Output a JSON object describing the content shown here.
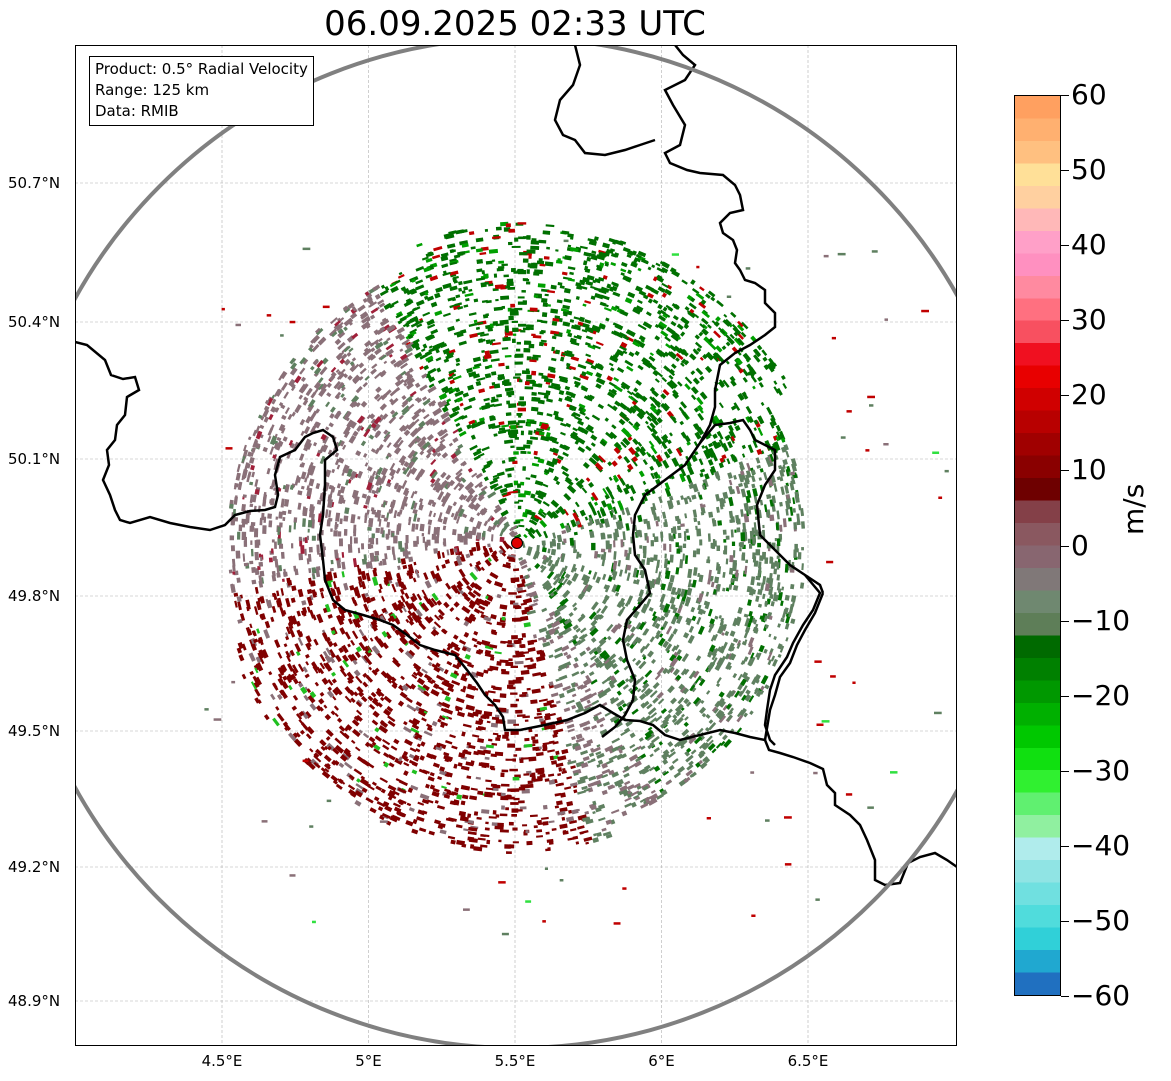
{
  "title": "06.09.2025 02:33 UTC",
  "info_box": {
    "product": "Product: 0.5° Radial Velocity",
    "range": "Range: 125 km",
    "data": "Data: RMIB"
  },
  "map": {
    "lon_range": [
      4.0,
      7.0
    ],
    "lat_range": [
      48.8,
      51.0
    ],
    "radar_site": {
      "lon": 5.505,
      "lat": 49.914
    },
    "range_ring_km": 125,
    "x_ticks": [
      "4.5°E",
      "5°E",
      "5.5°E",
      "6°E",
      "6.5°E"
    ],
    "x_tick_values": [
      4.5,
      5.0,
      5.5,
      6.0,
      6.5
    ],
    "y_ticks": [
      "50.7°N",
      "50.4°N",
      "50.1°N",
      "49.8°N",
      "49.5°N",
      "49.2°N",
      "48.9°N"
    ],
    "y_tick_values": [
      50.7,
      50.4,
      50.1,
      49.8,
      49.5,
      49.2,
      48.9
    ],
    "colors": {
      "border": "#000000",
      "range_ring": "#808080",
      "grid": "#b0b0b0",
      "site_marker": "#e00000",
      "inbound_dark": "#007000",
      "inbound_mid": "#5f8060",
      "near_zero": "#8a7078",
      "outbound": "#800000"
    }
  },
  "colorbar": {
    "label": "m/s",
    "ticks": [
      "60",
      "50",
      "40",
      "30",
      "20",
      "10",
      "0",
      "−10",
      "−20",
      "−30",
      "−40",
      "−50",
      "−60"
    ],
    "range": [
      -60,
      60
    ],
    "colors": [
      "#2070c0",
      "#20a8d0",
      "#30d0d8",
      "#50dcdc",
      "#70e0e0",
      "#90e4e4",
      "#b0ecec",
      "#90f0a0",
      "#60f070",
      "#30f030",
      "#10e010",
      "#00c800",
      "#00b000",
      "#009800",
      "#008000",
      "#006a00",
      "#5e7e58",
      "#6f8870",
      "#807878",
      "#886670",
      "#8a5860",
      "#844048",
      "#6e0000",
      "#8a0000",
      "#a00000",
      "#b80000",
      "#d00000",
      "#e80000",
      "#f01020",
      "#f85060",
      "#ff7080",
      "#ff8aa0",
      "#ff90c0",
      "#ffa0c8",
      "#ffb8b8",
      "#ffd0a0",
      "#ffe098",
      "#ffc080",
      "#ffb070",
      "#ffa060"
    ]
  }
}
